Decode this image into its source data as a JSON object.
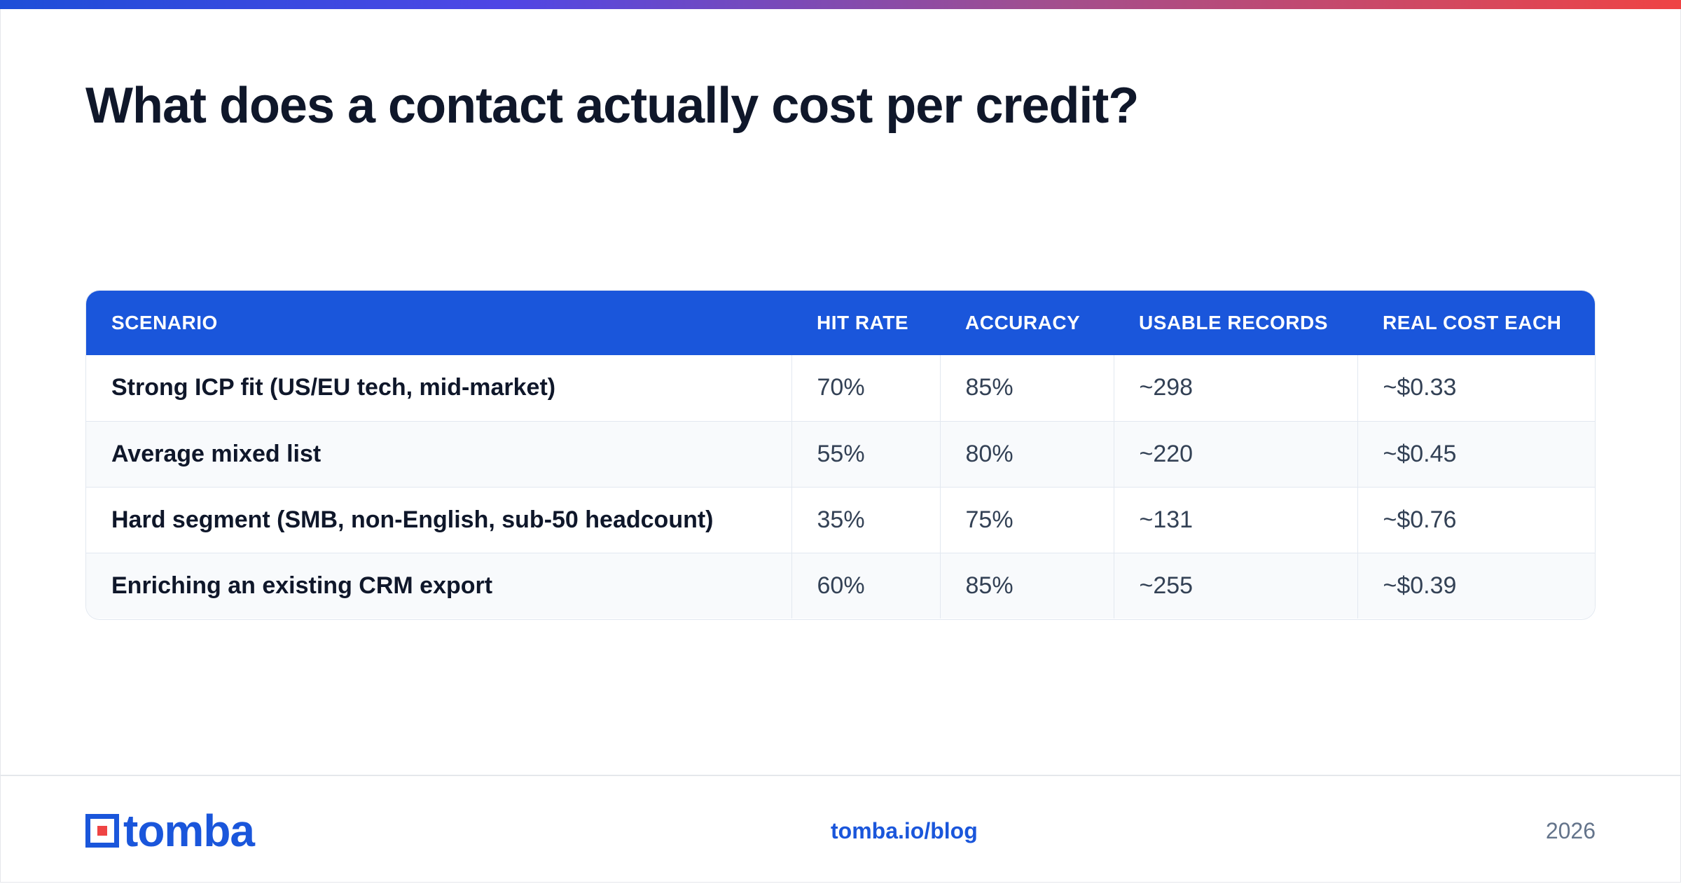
{
  "title": "What does a contact actually cost per credit?",
  "table": {
    "headers": [
      "SCENARIO",
      "HIT RATE",
      "ACCURACY",
      "USABLE RECORDS",
      "REAL COST EACH"
    ],
    "rows": [
      [
        "Strong ICP fit (US/EU tech, mid-market)",
        "70%",
        "85%",
        "~298",
        "~$0.33"
      ],
      [
        "Average mixed list",
        "55%",
        "80%",
        "~220",
        "~$0.45"
      ],
      [
        "Hard segment (SMB, non-English, sub-50 headcount)",
        "35%",
        "75%",
        "~131",
        "~$0.76"
      ],
      [
        "Enriching an existing CRM export",
        "60%",
        "85%",
        "~255",
        "~$0.39"
      ]
    ]
  },
  "footer": {
    "logo_text": "tomba",
    "link": "tomba.io/blog",
    "year": "2026"
  },
  "colors": {
    "brand_blue": "#1a56db",
    "accent_red": "#ef4444"
  }
}
